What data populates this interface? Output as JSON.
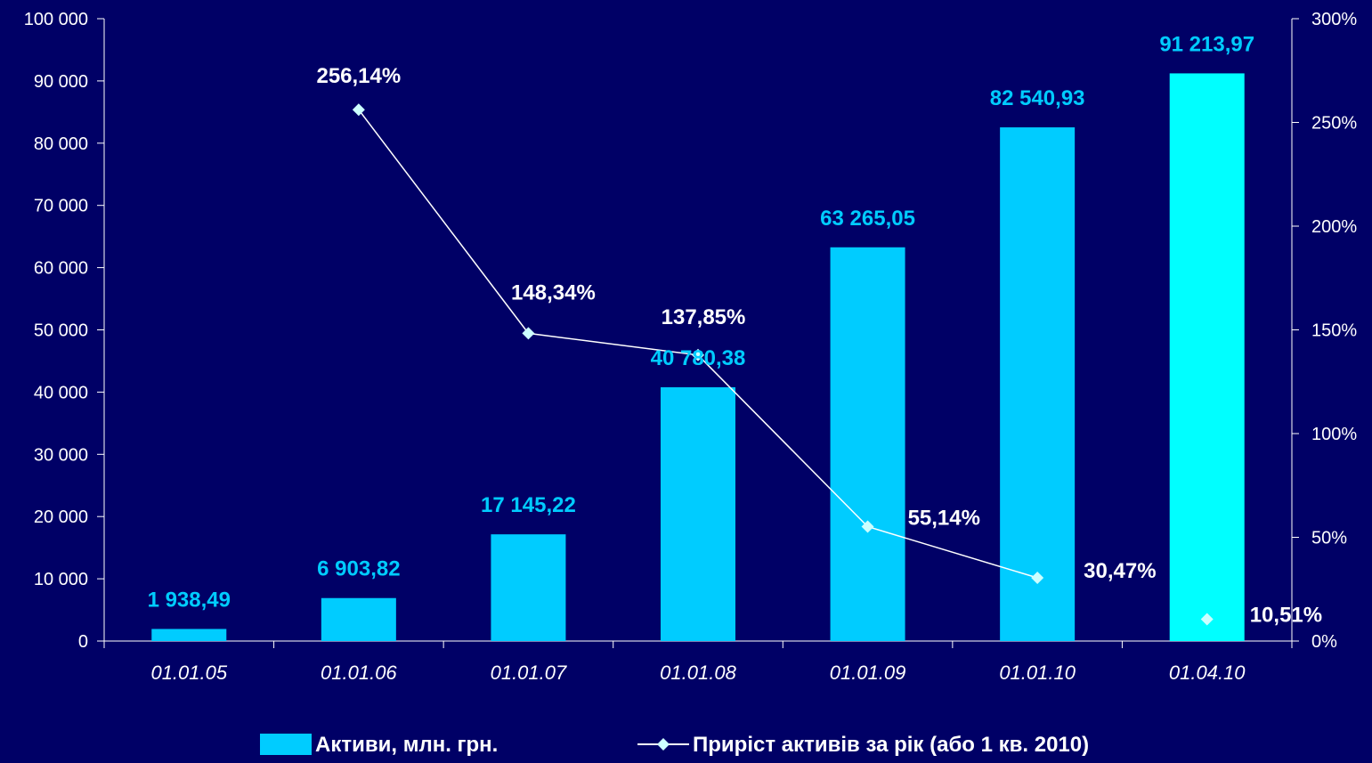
{
  "chart_data": {
    "type": "bar",
    "categories": [
      "01.01.05",
      "01.01.06",
      "01.01.07",
      "01.01.08",
      "01.01.09",
      "01.01.10",
      "01.04.10"
    ],
    "series": [
      {
        "name": "Активи, млн. грн.",
        "kind": "bar",
        "axis": "left",
        "values": [
          1938.49,
          6903.82,
          17145.22,
          40780.38,
          63265.05,
          82540.93,
          91213.97
        ],
        "labels": [
          "1 938,49",
          "6 903,82",
          "17 145,22",
          "40 780,38",
          "63 265,05",
          "82 540,93",
          "91 213,97"
        ]
      },
      {
        "name": "Приріст активів за рік (або 1 кв. 2010)",
        "kind": "line",
        "axis": "right",
        "values": [
          null,
          256.14,
          148.34,
          137.85,
          55.14,
          30.47,
          10.51
        ],
        "labels": [
          "",
          "256,14%",
          "148,34%",
          "137,85%",
          "55,14%",
          "30,47%",
          "10,51%"
        ]
      }
    ],
    "y_left": {
      "ylim": [
        0,
        100000
      ],
      "ticks": [
        "0",
        "10 000",
        "20 000",
        "30 000",
        "40 000",
        "50 000",
        "60 000",
        "70 000",
        "80 000",
        "90 000",
        "100 000"
      ]
    },
    "y_right": {
      "ylim": [
        0,
        300
      ],
      "ticks": [
        "0%",
        "50%",
        "100%",
        "150%",
        "200%",
        "250%",
        "300%"
      ]
    },
    "grid": false,
    "legend": "bottom",
    "colors": {
      "background": "#000066",
      "bar": "#00ccff",
      "bar_highlight": "#00ffff",
      "line": "#ffffff",
      "marker": "#ccffff",
      "bar_label": "#00ccff",
      "axis": "#ffffff"
    }
  }
}
